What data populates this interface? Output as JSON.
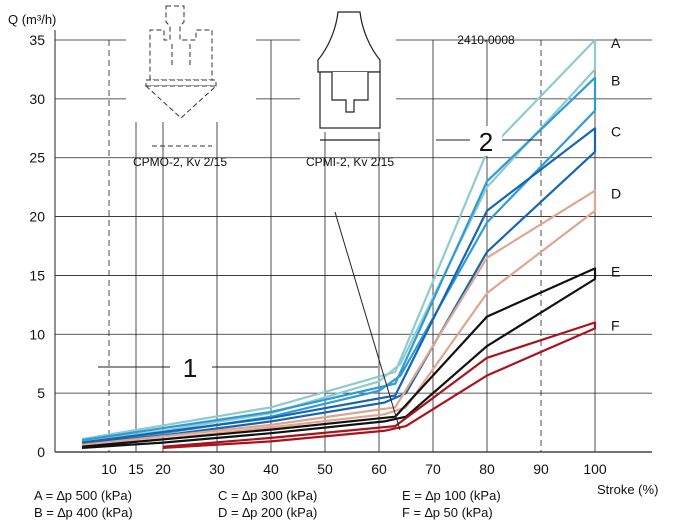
{
  "chart_data": {
    "type": "line",
    "title": "",
    "ylabel": "Q (m³/h)",
    "xlabel": "Stroke (%)",
    "ylim": [
      0,
      35
    ],
    "xlim": [
      0,
      100
    ],
    "y_ticks": [
      "0",
      "5",
      "10",
      "15",
      "20",
      "25",
      "30",
      "35"
    ],
    "x_ticks": [
      "10",
      "15",
      "20",
      "30",
      "40",
      "50",
      "60",
      "70",
      "80",
      "90",
      "100"
    ],
    "x_tick_values": [
      10,
      15,
      20,
      30,
      40,
      50,
      60,
      70,
      80,
      90,
      100
    ],
    "grid": true,
    "code": "2410-0008",
    "region_labels": [
      "1",
      "2"
    ],
    "diagram_labels": [
      "CPMO-2, Kv 2/15",
      "CPMI-2, Kv 2/15"
    ],
    "series": [
      {
        "name": "A",
        "color": "#8ecbd0",
        "opening": [
          [
            5,
            0.9
          ],
          [
            20,
            1.8
          ],
          [
            40,
            3.3
          ],
          [
            60,
            6.0
          ],
          [
            64,
            7.5
          ],
          [
            80,
            22.5
          ],
          [
            100,
            32.5
          ],
          [
            100,
            35.0
          ]
        ],
        "closing": [
          [
            100,
            35.0
          ],
          [
            80,
            25.5
          ],
          [
            63,
            6.8
          ],
          [
            40,
            3.8
          ],
          [
            5,
            1.1
          ]
        ]
      },
      {
        "name": "B",
        "color": "#2f9bd6",
        "opening": [
          [
            5,
            0.8
          ],
          [
            20,
            1.6
          ],
          [
            40,
            3.0
          ],
          [
            60,
            5.2
          ],
          [
            64,
            6.5
          ],
          [
            80,
            19.5
          ],
          [
            100,
            29.0
          ],
          [
            100,
            31.8
          ]
        ],
        "closing": [
          [
            100,
            31.8
          ],
          [
            80,
            23.0
          ],
          [
            63,
            5.8
          ],
          [
            40,
            3.4
          ],
          [
            5,
            1.0
          ]
        ]
      },
      {
        "name": "C",
        "color": "#1665b3",
        "opening": [
          [
            5,
            0.7
          ],
          [
            20,
            1.4
          ],
          [
            40,
            2.6
          ],
          [
            61,
            4.2
          ],
          [
            65,
            5.0
          ],
          [
            80,
            17.0
          ],
          [
            100,
            25.5
          ],
          [
            100,
            27.5
          ]
        ],
        "closing": [
          [
            100,
            27.5
          ],
          [
            80,
            20.5
          ],
          [
            63,
            4.8
          ],
          [
            40,
            2.9
          ],
          [
            5,
            0.8
          ]
        ]
      },
      {
        "name": "D",
        "color": "#e0a58e",
        "opening": [
          [
            5,
            0.5
          ],
          [
            20,
            1.1
          ],
          [
            40,
            2.1
          ],
          [
            61,
            3.2
          ],
          [
            65,
            3.8
          ],
          [
            80,
            13.5
          ],
          [
            100,
            20.5
          ],
          [
            100,
            22.2
          ]
        ],
        "closing": [
          [
            100,
            22.2
          ],
          [
            80,
            16.5
          ],
          [
            63,
            3.8
          ],
          [
            40,
            2.3
          ],
          [
            5,
            0.6
          ]
        ]
      },
      {
        "name": "E",
        "color": "#111111",
        "opening": [
          [
            5,
            0.35
          ],
          [
            20,
            0.8
          ],
          [
            40,
            1.6
          ],
          [
            61,
            2.6
          ],
          [
            65,
            3.0
          ],
          [
            80,
            9.0
          ],
          [
            100,
            14.7
          ],
          [
            100,
            15.6
          ]
        ],
        "closing": [
          [
            100,
            15.6
          ],
          [
            80,
            11.5
          ],
          [
            63,
            3.0
          ],
          [
            40,
            1.9
          ],
          [
            5,
            0.45
          ]
        ]
      },
      {
        "name": "F",
        "color": "#a8141e",
        "opening": [
          [
            20,
            0.35
          ],
          [
            40,
            0.9
          ],
          [
            61,
            1.8
          ],
          [
            65,
            2.2
          ],
          [
            80,
            6.5
          ],
          [
            100,
            10.5
          ],
          [
            100,
            11.0
          ]
        ],
        "closing": [
          [
            100,
            11.0
          ],
          [
            80,
            8.0
          ],
          [
            63,
            2.2
          ],
          [
            40,
            1.2
          ],
          [
            20,
            0.45
          ]
        ]
      }
    ],
    "legend_entries": [
      "A = ∆p 500 (kPa)",
      "B = ∆p 400 (kPa)",
      "C = ∆p 300 (kPa)",
      "D = ∆p 200 (kPa)",
      "E = ∆p 100 (kPa)",
      "F = ∆p 50 (kPa)"
    ]
  }
}
